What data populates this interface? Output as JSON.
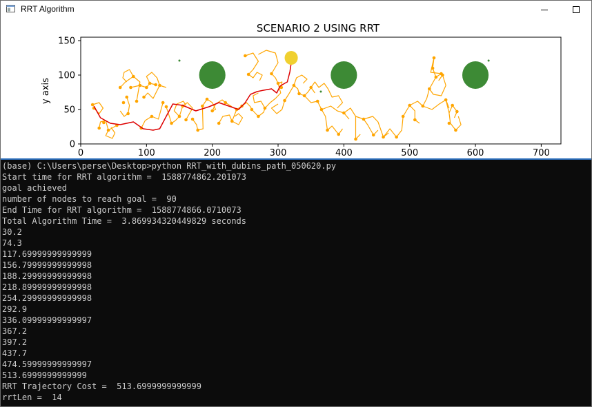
{
  "window": {
    "title": "RRT Algorithm",
    "minimize_icon": "minimize-icon",
    "maximize_icon": "maximize-icon"
  },
  "chart_data": {
    "type": "scatter",
    "title": "SCENARIO 2 USING RRT",
    "xlabel": "",
    "ylabel": "y axis",
    "xlim": [
      0,
      730
    ],
    "ylim": [
      0,
      155
    ],
    "xticks": [
      "0",
      "100",
      "200",
      "300",
      "400",
      "500",
      "600",
      "700"
    ],
    "xtick_values": [
      0,
      100,
      200,
      300,
      400,
      500,
      600,
      700
    ],
    "yticks": [
      "0",
      "50",
      "100",
      "150"
    ],
    "ytick_values": [
      0,
      50,
      100,
      150
    ],
    "colors": {
      "tree": "#ffa500",
      "path": "#dd0000",
      "obstacle": "#3d8a35",
      "goal": "#f0d030"
    },
    "obstacles": [
      {
        "x": 200,
        "y": 100,
        "r": 20
      },
      {
        "x": 400,
        "y": 100,
        "r": 20
      },
      {
        "x": 600,
        "y": 100,
        "r": 20
      }
    ],
    "small_points": [
      {
        "x": 150,
        "y": 121
      },
      {
        "x": 365,
        "y": 76
      },
      {
        "x": 620,
        "y": 121
      }
    ],
    "goal": {
      "x": 320,
      "y": 125,
      "r": 10
    },
    "tree_nodes": [
      [
        18,
        57
      ],
      [
        20,
        52
      ],
      [
        28,
        23
      ],
      [
        35,
        31
      ],
      [
        42,
        20
      ],
      [
        55,
        27
      ],
      [
        60,
        82
      ],
      [
        65,
        60
      ],
      [
        70,
        68
      ],
      [
        72,
        44
      ],
      [
        76,
        82
      ],
      [
        80,
        98
      ],
      [
        85,
        62
      ],
      [
        90,
        85
      ],
      [
        92,
        23
      ],
      [
        96,
        68
      ],
      [
        100,
        82
      ],
      [
        105,
        88
      ],
      [
        108,
        40
      ],
      [
        114,
        86
      ],
      [
        120,
        85
      ],
      [
        125,
        60
      ],
      [
        130,
        54
      ],
      [
        138,
        30
      ],
      [
        150,
        40
      ],
      [
        155,
        55
      ],
      [
        160,
        35
      ],
      [
        170,
        36
      ],
      [
        178,
        20
      ],
      [
        185,
        55
      ],
      [
        192,
        65
      ],
      [
        200,
        48
      ],
      [
        210,
        30
      ],
      [
        220,
        60
      ],
      [
        230,
        33
      ],
      [
        237,
        50
      ],
      [
        245,
        55
      ],
      [
        250,
        128
      ],
      [
        255,
        101
      ],
      [
        260,
        50
      ],
      [
        270,
        40
      ],
      [
        280,
        52
      ],
      [
        290,
        102
      ],
      [
        300,
        88
      ],
      [
        305,
        82
      ],
      [
        310,
        63
      ],
      [
        320,
        118
      ],
      [
        324,
        85
      ],
      [
        332,
        73
      ],
      [
        340,
        70
      ],
      [
        350,
        82
      ],
      [
        360,
        62
      ],
      [
        366,
        50
      ],
      [
        375,
        20
      ],
      [
        392,
        14
      ],
      [
        400,
        45
      ],
      [
        418,
        7
      ],
      [
        430,
        36
      ],
      [
        445,
        13
      ],
      [
        460,
        10
      ],
      [
        480,
        10
      ],
      [
        490,
        40
      ],
      [
        500,
        56
      ],
      [
        508,
        35
      ],
      [
        520,
        55
      ],
      [
        530,
        80
      ],
      [
        540,
        97
      ],
      [
        550,
        100
      ],
      [
        537,
        125
      ],
      [
        555,
        64
      ],
      [
        560,
        30
      ],
      [
        565,
        56
      ],
      [
        572,
        47
      ],
      [
        548,
        102
      ],
      [
        535,
        110
      ],
      [
        570,
        20
      ]
    ],
    "tree_segments": [
      [
        [
          18,
          57
        ],
        [
          28,
          60
        ],
        [
          34,
          52
        ],
        [
          28,
          44
        ],
        [
          20,
          52
        ]
      ],
      [
        [
          28,
          23
        ],
        [
          30,
          32
        ],
        [
          38,
          34
        ],
        [
          42,
          20
        ],
        [
          55,
          27
        ]
      ],
      [
        [
          60,
          82
        ],
        [
          68,
          90
        ],
        [
          80,
          98
        ],
        [
          90,
          90
        ],
        [
          85,
          62
        ]
      ],
      [
        [
          70,
          68
        ],
        [
          74,
          56
        ],
        [
          72,
          44
        ],
        [
          66,
          40
        ],
        [
          60,
          48
        ]
      ],
      [
        [
          76,
          82
        ],
        [
          90,
          85
        ],
        [
          100,
          82
        ],
        [
          105,
          88
        ],
        [
          114,
          86
        ]
      ],
      [
        [
          92,
          23
        ],
        [
          98,
          34
        ],
        [
          108,
          40
        ],
        [
          118,
          36
        ],
        [
          125,
          60
        ]
      ],
      [
        [
          96,
          68
        ],
        [
          102,
          74
        ],
        [
          110,
          66
        ],
        [
          120,
          85
        ],
        [
          130,
          82
        ]
      ],
      [
        [
          130,
          54
        ],
        [
          134,
          42
        ],
        [
          138,
          30
        ],
        [
          144,
          34
        ],
        [
          150,
          40
        ]
      ],
      [
        [
          150,
          40
        ],
        [
          155,
          55
        ],
        [
          162,
          60
        ],
        [
          170,
          52
        ],
        [
          160,
          35
        ]
      ],
      [
        [
          170,
          36
        ],
        [
          176,
          28
        ],
        [
          178,
          20
        ],
        [
          186,
          22
        ],
        [
          185,
          55
        ]
      ],
      [
        [
          185,
          55
        ],
        [
          192,
          65
        ],
        [
          200,
          60
        ],
        [
          205,
          50
        ],
        [
          200,
          48
        ]
      ],
      [
        [
          200,
          48
        ],
        [
          205,
          58
        ],
        [
          215,
          64
        ],
        [
          220,
          60
        ],
        [
          230,
          54
        ]
      ],
      [
        [
          210,
          30
        ],
        [
          216,
          40
        ],
        [
          226,
          42
        ],
        [
          230,
          33
        ],
        [
          237,
          50
        ]
      ],
      [
        [
          237,
          50
        ],
        [
          245,
          55
        ],
        [
          252,
          60
        ],
        [
          258,
          54
        ],
        [
          260,
          50
        ]
      ],
      [
        [
          250,
          128
        ],
        [
          262,
          132
        ],
        [
          270,
          120
        ],
        [
          262,
          108
        ],
        [
          255,
          101
        ]
      ],
      [
        [
          260,
          50
        ],
        [
          266,
          44
        ],
        [
          270,
          40
        ],
        [
          278,
          46
        ],
        [
          280,
          52
        ]
      ],
      [
        [
          280,
          52
        ],
        [
          288,
          60
        ],
        [
          296,
          66
        ],
        [
          304,
          74
        ],
        [
          300,
          88
        ]
      ],
      [
        [
          290,
          102
        ],
        [
          296,
          96
        ],
        [
          300,
          88
        ],
        [
          306,
          90
        ],
        [
          305,
          82
        ]
      ],
      [
        [
          270,
          130
        ],
        [
          282,
          136
        ],
        [
          296,
          132
        ],
        [
          300,
          118
        ],
        [
          290,
          102
        ]
      ],
      [
        [
          310,
          63
        ],
        [
          316,
          72
        ],
        [
          324,
          85
        ],
        [
          330,
          80
        ],
        [
          332,
          73
        ]
      ],
      [
        [
          332,
          73
        ],
        [
          340,
          70
        ],
        [
          346,
          76
        ],
        [
          350,
          82
        ],
        [
          356,
          74
        ]
      ],
      [
        [
          340,
          70
        ],
        [
          350,
          60
        ],
        [
          360,
          62
        ],
        [
          366,
          50
        ],
        [
          372,
          40
        ]
      ],
      [
        [
          372,
          40
        ],
        [
          375,
          20
        ],
        [
          382,
          26
        ],
        [
          392,
          14
        ],
        [
          398,
          22
        ]
      ],
      [
        [
          366,
          50
        ],
        [
          380,
          55
        ],
        [
          390,
          48
        ],
        [
          400,
          45
        ],
        [
          408,
          36
        ]
      ],
      [
        [
          400,
          45
        ],
        [
          410,
          52
        ],
        [
          418,
          40
        ],
        [
          418,
          7
        ],
        [
          425,
          14
        ]
      ],
      [
        [
          418,
          40
        ],
        [
          430,
          36
        ],
        [
          436,
          28
        ],
        [
          445,
          13
        ],
        [
          452,
          20
        ]
      ],
      [
        [
          430,
          36
        ],
        [
          444,
          40
        ],
        [
          452,
          32
        ],
        [
          460,
          10
        ],
        [
          468,
          16
        ]
      ],
      [
        [
          460,
          10
        ],
        [
          470,
          22
        ],
        [
          480,
          10
        ],
        [
          488,
          20
        ],
        [
          490,
          40
        ]
      ],
      [
        [
          490,
          40
        ],
        [
          500,
          56
        ],
        [
          508,
          48
        ],
        [
          508,
          35
        ],
        [
          515,
          30
        ]
      ],
      [
        [
          500,
          56
        ],
        [
          512,
          62
        ],
        [
          520,
          55
        ],
        [
          526,
          66
        ],
        [
          530,
          80
        ]
      ],
      [
        [
          530,
          80
        ],
        [
          540,
          97
        ],
        [
          548,
          102
        ],
        [
          550,
          100
        ],
        [
          544,
          92
        ]
      ],
      [
        [
          540,
          97
        ],
        [
          535,
          110
        ],
        [
          537,
          125
        ],
        [
          532,
          104
        ],
        [
          548,
          102
        ]
      ],
      [
        [
          520,
          55
        ],
        [
          534,
          50
        ],
        [
          545,
          58
        ],
        [
          555,
          64
        ],
        [
          560,
          52
        ]
      ],
      [
        [
          555,
          64
        ],
        [
          560,
          45
        ],
        [
          565,
          56
        ],
        [
          572,
          47
        ],
        [
          568,
          38
        ]
      ],
      [
        [
          560,
          45
        ],
        [
          562,
          30
        ],
        [
          570,
          20
        ],
        [
          578,
          28
        ],
        [
          574,
          40
        ]
      ],
      [
        [
          550,
          100
        ],
        [
          555,
          85
        ],
        [
          548,
          70
        ],
        [
          536,
          72
        ],
        [
          530,
          80
        ]
      ],
      [
        [
          310,
          63
        ],
        [
          306,
          50
        ],
        [
          298,
          44
        ],
        [
          290,
          52
        ],
        [
          300,
          58
        ]
      ],
      [
        [
          324,
          85
        ],
        [
          328,
          96
        ],
        [
          336,
          100
        ],
        [
          344,
          94
        ],
        [
          338,
          88
        ]
      ],
      [
        [
          350,
          82
        ],
        [
          356,
          90
        ],
        [
          362,
          82
        ],
        [
          370,
          88
        ],
        [
          376,
          80
        ]
      ],
      [
        [
          376,
          80
        ],
        [
          382,
          68
        ],
        [
          392,
          70
        ],
        [
          398,
          60
        ],
        [
          390,
          52
        ]
      ],
      [
        [
          120,
          85
        ],
        [
          116,
          96
        ],
        [
          108,
          104
        ],
        [
          100,
          98
        ],
        [
          104,
          90
        ]
      ],
      [
        [
          80,
          98
        ],
        [
          74,
          108
        ],
        [
          66,
          104
        ],
        [
          64,
          96
        ],
        [
          70,
          90
        ]
      ],
      [
        [
          42,
          20
        ],
        [
          38,
          12
        ],
        [
          48,
          8
        ],
        [
          52,
          16
        ],
        [
          46,
          24
        ]
      ],
      [
        [
          230,
          33
        ],
        [
          240,
          28
        ],
        [
          246,
          38
        ],
        [
          240,
          44
        ],
        [
          234,
          40
        ]
      ],
      [
        [
          255,
          101
        ],
        [
          262,
          96
        ],
        [
          268,
          104
        ],
        [
          276,
          100
        ],
        [
          272,
          92
        ]
      ],
      [
        [
          280,
          52
        ],
        [
          274,
          62
        ],
        [
          264,
          60
        ],
        [
          262,
          70
        ],
        [
          270,
          74
        ]
      ],
      [
        [
          150,
          40
        ],
        [
          142,
          48
        ],
        [
          146,
          58
        ],
        [
          156,
          62
        ],
        [
          160,
          56
        ]
      ]
    ],
    "path": [
      [
        20,
        55
      ],
      [
        30,
        38
      ],
      [
        45,
        30
      ],
      [
        60,
        28
      ],
      [
        80,
        32
      ],
      [
        95,
        22
      ],
      [
        110,
        20
      ],
      [
        120,
        22
      ],
      [
        130,
        40
      ],
      [
        140,
        58
      ],
      [
        155,
        56
      ],
      [
        175,
        48
      ],
      [
        195,
        54
      ],
      [
        210,
        60
      ],
      [
        225,
        55
      ],
      [
        240,
        50
      ],
      [
        250,
        60
      ],
      [
        258,
        72
      ],
      [
        268,
        76
      ],
      [
        278,
        78
      ],
      [
        290,
        80
      ],
      [
        298,
        74
      ],
      [
        303,
        84
      ],
      [
        310,
        88
      ],
      [
        314,
        90
      ],
      [
        318,
        105
      ],
      [
        320,
        118
      ]
    ]
  },
  "console": {
    "lines": [
      "(base) C:\\Users\\perse\\Desktop>python RRT_with_dubins_path_050620.py",
      "Start time for RRT algorithm =  1588774862.201073",
      "goal achieved",
      "number of nodes to reach goal =  90",
      "End Time for RRT algorithm =  1588774866.0710073",
      "Total Algorithm Time =  3.869934320449829 seconds",
      "30.2",
      "74.3",
      "117.69999999999999",
      "156.79999999999998",
      "188.29999999999998",
      "218.89999999999998",
      "254.29999999999998",
      "292.9",
      "336.09999999999997",
      "367.2",
      "397.2",
      "437.7",
      "474.59999999999997",
      "513.6999999999999",
      "RRT Trajectory Cost =  513.6999999999999",
      "rrtLen =  14"
    ]
  }
}
